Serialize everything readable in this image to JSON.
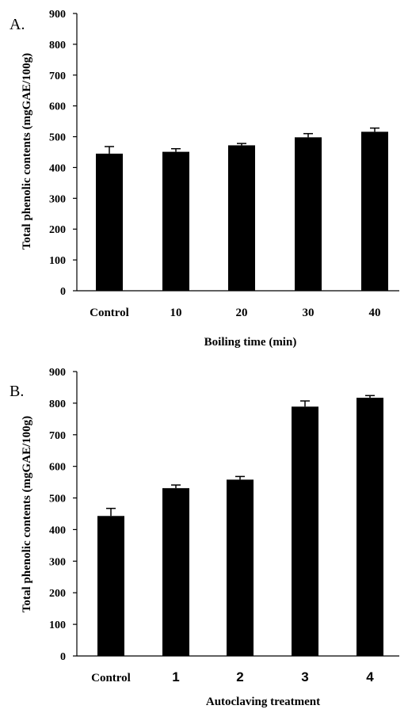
{
  "chart_data": [
    {
      "type": "bar",
      "panel_label": "A.",
      "categories": [
        "Control",
        "10",
        "20",
        "30",
        "40"
      ],
      "values": [
        445,
        451,
        472,
        498,
        516
      ],
      "errors": [
        23,
        10,
        6,
        12,
        12
      ],
      "xlabel": "Boiling time (min)",
      "ylabel": "Total phenolic contents (mgGAE/100g)",
      "ylim": [
        0,
        900
      ],
      "yticks": [
        "0",
        "100",
        "200",
        "300",
        "400",
        "500",
        "600",
        "700",
        "800",
        "900"
      ],
      "bar_color": "#000000",
      "grid": false,
      "legend": "none"
    },
    {
      "type": "bar",
      "panel_label": "B.",
      "categories": [
        "Control",
        "1",
        "2",
        "3",
        "4"
      ],
      "values": [
        443,
        531,
        558,
        789,
        817
      ],
      "errors": [
        24,
        10,
        10,
        18,
        7
      ],
      "xlabel": "Autoclaving treatment",
      "ylabel": "Total phenolic contents (mgGAE/100g)",
      "ylim": [
        0,
        900
      ],
      "yticks": [
        "0",
        "100",
        "200",
        "300",
        "400",
        "500",
        "600",
        "700",
        "800",
        "900"
      ],
      "bar_color": "#000000",
      "grid": false,
      "legend": "none"
    }
  ]
}
